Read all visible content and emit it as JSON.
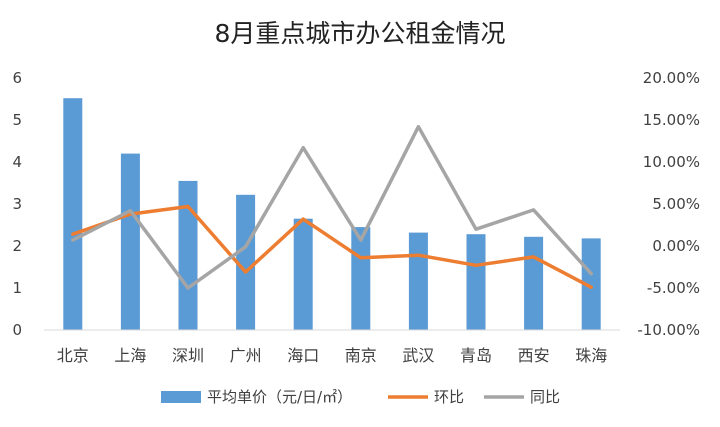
{
  "chart_data": {
    "type": "bar",
    "title": "8月重点城市办公租金情况",
    "categories": [
      "北京",
      "上海",
      "深圳",
      "广州",
      "海口",
      "南京",
      "武汉",
      "青岛",
      "西安",
      "珠海"
    ],
    "series": [
      {
        "name": "平均单价（元/日/㎡）",
        "type": "bar",
        "axis": "left",
        "color": "#5b9bd5",
        "values": [
          5.52,
          4.2,
          3.55,
          3.22,
          2.65,
          2.45,
          2.32,
          2.28,
          2.22,
          2.18
        ]
      },
      {
        "name": "环比",
        "type": "line",
        "axis": "right",
        "color": "#ed7d31",
        "values": [
          1.4,
          3.8,
          4.7,
          -3.1,
          3.2,
          -1.4,
          -1.1,
          -2.3,
          -1.3,
          -4.9
        ]
      },
      {
        "name": "同比",
        "type": "line",
        "axis": "right",
        "color": "#a5a5a5",
        "values": [
          0.7,
          4.2,
          -5.0,
          -0.1,
          11.7,
          0.7,
          14.2,
          2.0,
          4.3,
          -3.3
        ]
      }
    ],
    "y_left": {
      "min": 0,
      "max": 6,
      "ticks": [
        "0",
        "1",
        "2",
        "3",
        "4",
        "5",
        "6"
      ]
    },
    "y_right": {
      "min": -10,
      "max": 20,
      "ticks": [
        "-10.00%",
        "-5.00%",
        "0.00%",
        "5.00%",
        "10.00%",
        "15.00%",
        "20.00%"
      ]
    },
    "grid": false,
    "legend_position": "bottom"
  }
}
